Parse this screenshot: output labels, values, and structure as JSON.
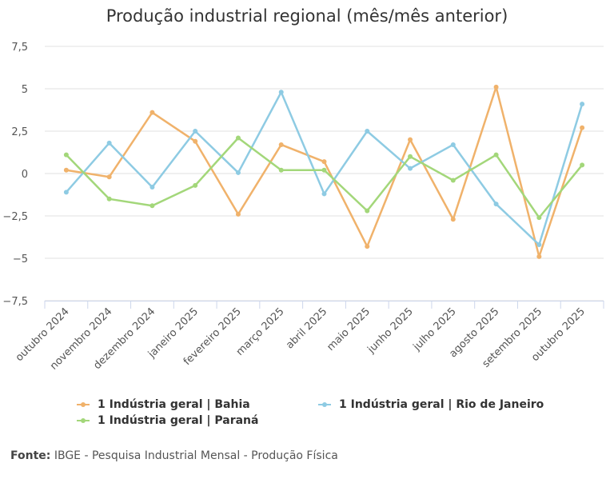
{
  "chart_data": {
    "type": "line",
    "title": "Produção industrial regional (mês/mês anterior)",
    "categories": [
      "outubro 2024",
      "novembro 2024",
      "dezembro 2024",
      "janeiro 2025",
      "fevereiro 2025",
      "março 2025",
      "abril 2025",
      "maio 2025",
      "junho 2025",
      "julho 2025",
      "agosto 2025",
      "setembro 2025",
      "outubro 2025"
    ],
    "yticks": [
      "7,5",
      "5",
      "2,5",
      "0",
      "−2,5",
      "−5",
      "−7,5"
    ],
    "ylim": [
      -7.5,
      7.5
    ],
    "grid": true,
    "legend": "bottom",
    "series": [
      {
        "name": "1 Indústria geral | Bahia",
        "color": "#f0b26b",
        "values": [
          0.2,
          -0.2,
          3.6,
          1.9,
          -2.4,
          1.7,
          0.7,
          -4.3,
          2.0,
          -2.7,
          5.1,
          -4.9,
          2.7
        ]
      },
      {
        "name": "1 Indústria geral | Rio de Janeiro",
        "color": "#8ecbe3",
        "values": [
          -1.1,
          1.8,
          -0.8,
          2.5,
          0.05,
          4.8,
          -1.2,
          2.5,
          0.3,
          1.7,
          -1.8,
          -4.2,
          4.1
        ]
      },
      {
        "name": "1 Indústria geral | Paraná",
        "color": "#a3d77a",
        "values": [
          1.1,
          -1.5,
          -1.9,
          -0.7,
          2.1,
          0.2,
          0.2,
          -2.2,
          1.0,
          -0.4,
          1.1,
          -2.6,
          0.5
        ]
      }
    ]
  },
  "source": {
    "label": "Fonte:",
    "text": "IBGE - Pesquisa Industrial Mensal - Produção Física"
  }
}
